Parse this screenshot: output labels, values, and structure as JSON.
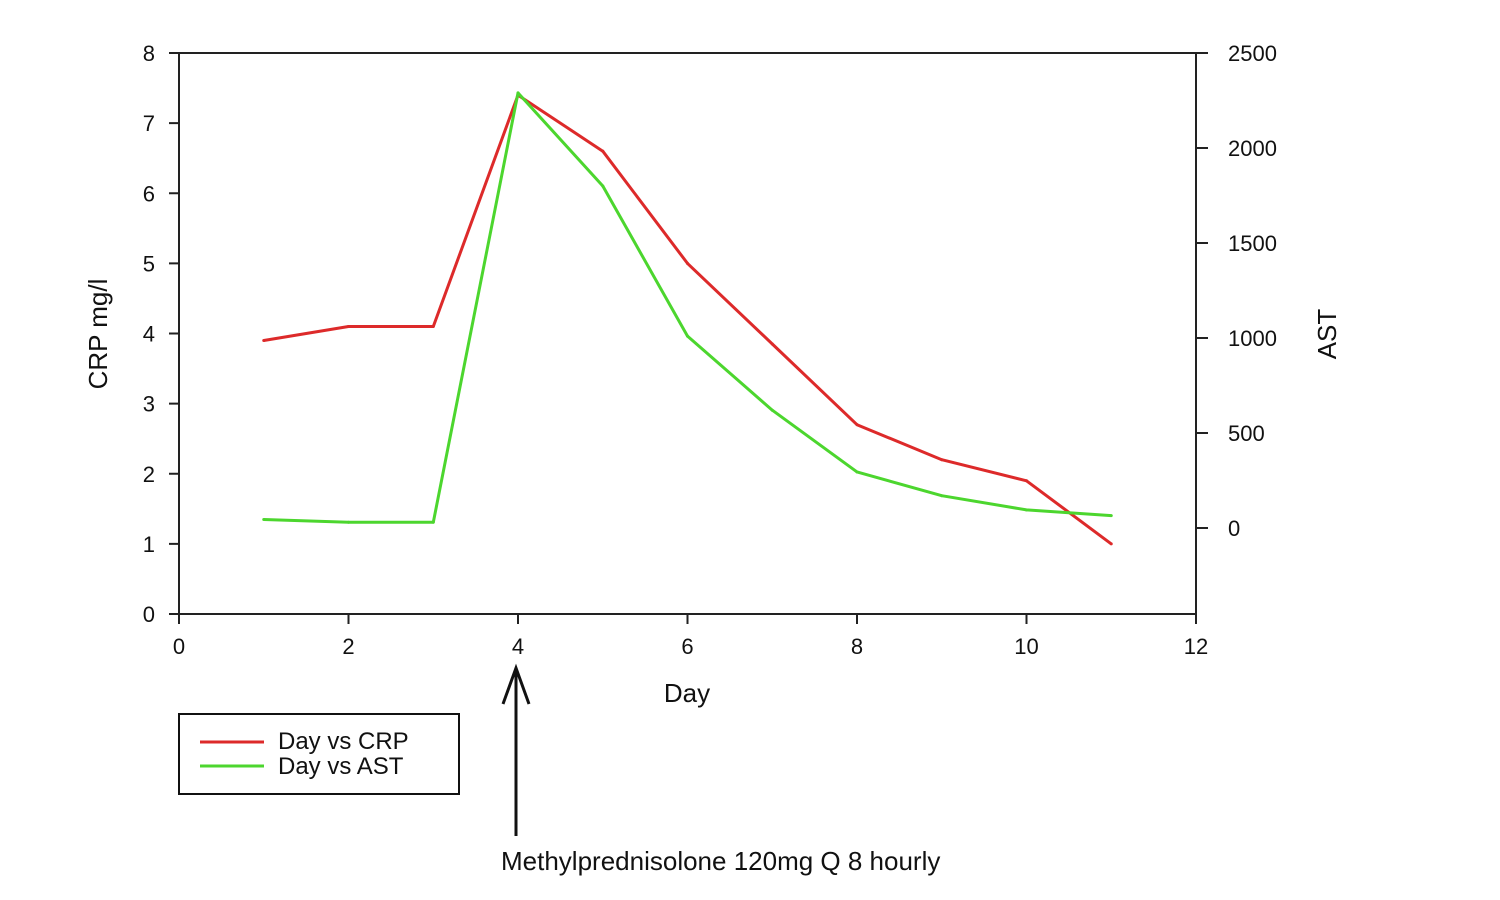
{
  "chart_data": {
    "type": "line",
    "title": "",
    "xlabel": "Day",
    "ylabel_left": "CRP mg/l",
    "ylabel_right": "AST",
    "xlim": [
      0,
      12
    ],
    "ylim_left": [
      0,
      8
    ],
    "ylim_right_ticks_range": [
      0,
      2500
    ],
    "x_ticks": [
      0,
      2,
      4,
      6,
      8,
      10,
      12
    ],
    "y_left_ticks": [
      0,
      1,
      2,
      3,
      4,
      5,
      6,
      7,
      8
    ],
    "y_right_ticks": [
      0,
      500,
      1000,
      1500,
      2000,
      2500
    ],
    "grid": false,
    "series": [
      {
        "name": "Day vs CRP",
        "axis": "left",
        "color": "#dd2a2a",
        "x": [
          1,
          2,
          3,
          4,
          5,
          6,
          7,
          8,
          9,
          10,
          11
        ],
        "y": [
          3.9,
          4.1,
          4.1,
          7.4,
          6.6,
          5.0,
          3.85,
          2.7,
          2.2,
          1.9,
          1.0
        ]
      },
      {
        "name": "Day vs AST",
        "axis": "right",
        "color": "#4cd62e",
        "x": [
          1,
          2,
          3,
          4,
          5,
          6,
          7,
          8,
          9,
          10,
          11
        ],
        "y": [
          45,
          30,
          30,
          2290,
          1800,
          1010,
          620,
          295,
          170,
          95,
          65
        ]
      }
    ],
    "legend": {
      "placement": "bottom-left",
      "entries": [
        "Day vs CRP",
        "Day vs AST"
      ]
    },
    "annotation": {
      "text": "Methylprednisolone 120mg Q 8 hourly",
      "x": 4
    }
  }
}
